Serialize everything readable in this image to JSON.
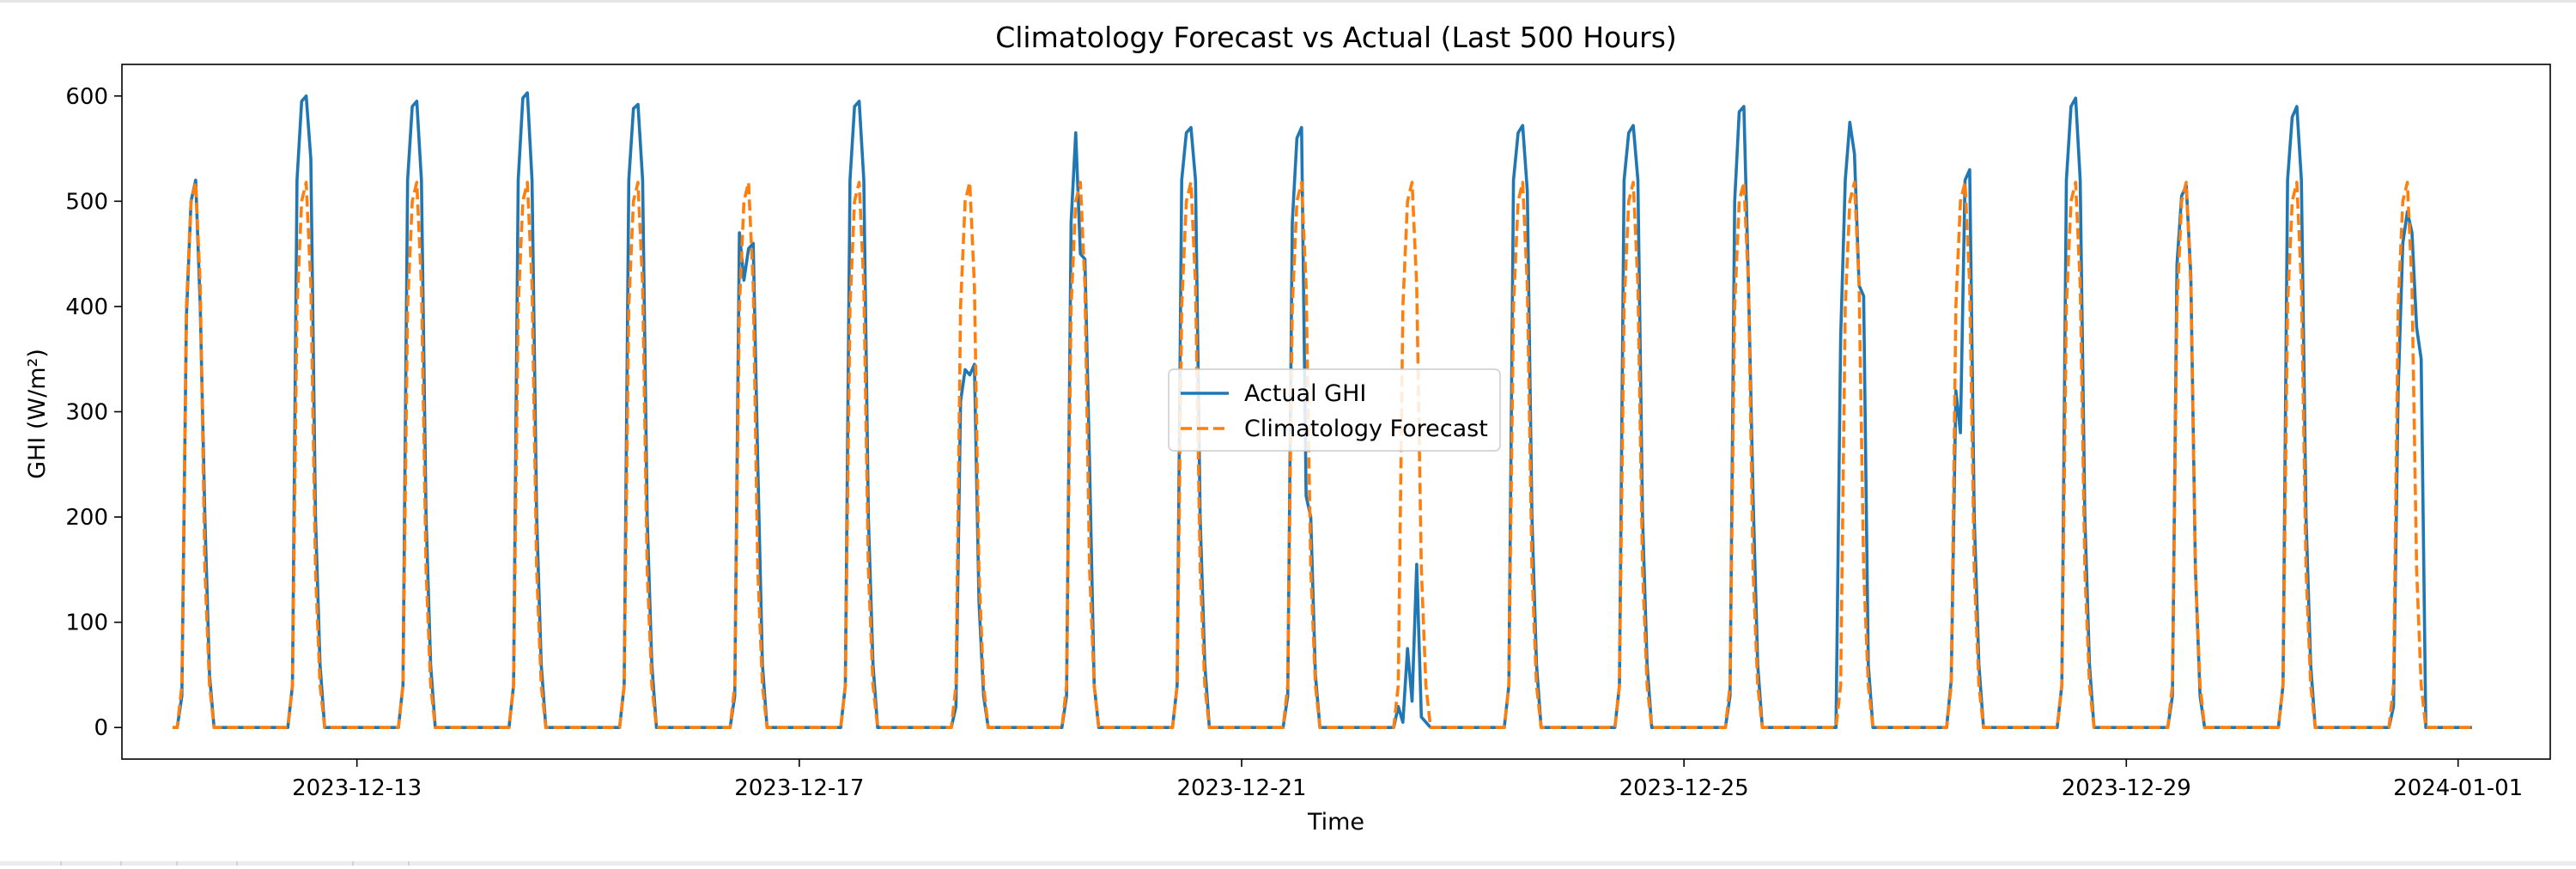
{
  "chart_data": {
    "type": "line",
    "title": "Climatology Forecast vs Actual (Last 500 Hours)",
    "xlabel": "Time",
    "ylabel": "GHI (W/m²)",
    "x_unit": "hours",
    "x_start": "2023-12-11 08:00",
    "xlim": [
      "2023-12-10 21:00",
      "2024-01-01 20:00"
    ],
    "ylim": [
      -30,
      630
    ],
    "yticks": [
      0,
      100,
      200,
      300,
      400,
      500,
      600
    ],
    "xticks": [
      {
        "label": "2023-12-13",
        "date": "2023-12-13 00:00"
      },
      {
        "label": "2023-12-17",
        "date": "2023-12-17 00:00"
      },
      {
        "label": "2023-12-21",
        "date": "2023-12-21 00:00"
      },
      {
        "label": "2023-12-25",
        "date": "2023-12-25 00:00"
      },
      {
        "label": "2023-12-29",
        "date": "2023-12-29 00:00"
      },
      {
        "label": "2024-01-01",
        "date": "2024-01-01 00:00"
      }
    ],
    "legend": {
      "placement": "center"
    },
    "grid": false,
    "series": [
      {
        "name": "Actual GHI",
        "color": "#1f77b4",
        "style": "solid",
        "days": [
          [
            30,
            390,
            500,
            520,
            400,
            200,
            50
          ],
          [
            40,
            520,
            595,
            600,
            540,
            200,
            60
          ],
          [
            40,
            520,
            590,
            595,
            520,
            200,
            60
          ],
          [
            40,
            520,
            598,
            603,
            520,
            200,
            60
          ],
          [
            40,
            520,
            588,
            592,
            520,
            200,
            60
          ],
          [
            30,
            470,
            425,
            455,
            460,
            250,
            60
          ],
          [
            40,
            520,
            590,
            595,
            520,
            200,
            60
          ],
          [
            20,
            310,
            340,
            335,
            345,
            120,
            30
          ],
          [
            30,
            480,
            565,
            450,
            445,
            250,
            40
          ],
          [
            40,
            520,
            565,
            570,
            520,
            200,
            60
          ],
          [
            30,
            480,
            560,
            570,
            220,
            200,
            50
          ],
          [
            20,
            5,
            75,
            25,
            155,
            10,
            5
          ],
          [
            40,
            520,
            565,
            572,
            510,
            200,
            60
          ],
          [
            40,
            520,
            565,
            572,
            520,
            200,
            60
          ],
          [
            30,
            500,
            585,
            590,
            420,
            220,
            60
          ],
          [
            370,
            520,
            575,
            545,
            420,
            410,
            60
          ],
          [
            45,
            320,
            280,
            520,
            530,
            200,
            60
          ],
          [
            40,
            520,
            590,
            598,
            520,
            200,
            60
          ],
          [
            30,
            440,
            505,
            515,
            430,
            150,
            30
          ],
          [
            40,
            520,
            580,
            590,
            520,
            200,
            60
          ],
          [
            20,
            320,
            460,
            490,
            470,
            380,
            350
          ]
        ]
      },
      {
        "name": "Climatology Forecast",
        "color": "#ff7f0e",
        "style": "dashed",
        "profile": [
          40,
          400,
          500,
          518,
          420,
          150,
          40
        ]
      }
    ]
  }
}
